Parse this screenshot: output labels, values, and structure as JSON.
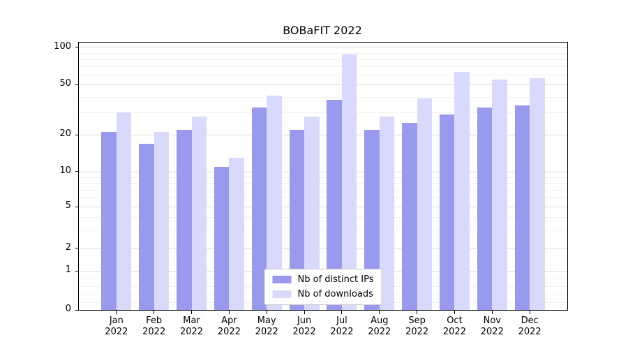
{
  "title": "BOBaFIT 2022",
  "chart_data": {
    "type": "bar",
    "title": "BOBaFIT 2022",
    "scale": "symlog",
    "categories": [
      "Jan",
      "Feb",
      "Mar",
      "Apr",
      "May",
      "Jun",
      "Jul",
      "Aug",
      "Sep",
      "Oct",
      "Nov",
      "Dec"
    ],
    "year_label": "2022",
    "series": [
      {
        "name": "Nb of distinct IPs",
        "color": "#9999ee",
        "values": [
          21,
          17,
          22,
          11,
          33,
          22,
          38,
          22,
          25,
          29,
          33,
          34
        ]
      },
      {
        "name": "Nb of downloads",
        "color": "#d9d9fb",
        "values": [
          30,
          21,
          28,
          13,
          41,
          28,
          88,
          28,
          39,
          63,
          55,
          56
        ]
      }
    ],
    "yticks": [
      0,
      1,
      2,
      5,
      10,
      20,
      50,
      100
    ],
    "ylim": [
      0,
      100
    ],
    "grid": {
      "major": true,
      "minor": true
    },
    "legend_position": "lower center",
    "xlabel": "",
    "ylabel": ""
  }
}
